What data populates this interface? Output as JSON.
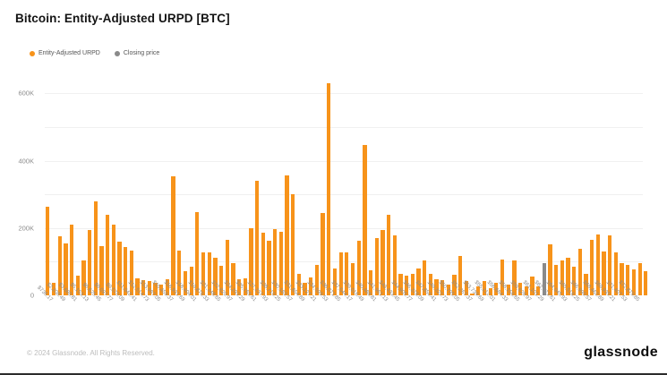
{
  "title": "Bitcoin: Entity-Adjusted URPD [BTC]",
  "legend": {
    "items": [
      {
        "label": "Entity-Adjusted URPD",
        "color": "#F7931A"
      },
      {
        "label": "Closing price",
        "color": "#8A8A8A"
      }
    ]
  },
  "footer": {
    "copyright": "© 2024 Glassnode. All Rights Reserved.",
    "brand": "glassnode"
  },
  "colors": {
    "bar_orange": "#F7931A",
    "bar_gray": "#8A8A8A",
    "gridline": "#f0f0f0",
    "axis_text": "#8c8c8c"
  },
  "chart_data": {
    "type": "bar",
    "title": "Bitcoin: Entity-Adjusted URPD [BTC]",
    "unit": "BTC",
    "grid": true,
    "legend_position": "top-left",
    "ylim": [
      0,
      650000
    ],
    "yticks": [
      {
        "label": "0",
        "v": 0
      },
      {
        "label": "200K",
        "v": 200000
      },
      {
        "label": "400K",
        "v": 400000
      },
      {
        "label": "600K",
        "v": 600000
      }
    ],
    "gridline_values": [
      100000,
      200000,
      300000,
      400000,
      500000,
      600000
    ],
    "series": [
      {
        "name": "Entity-Adjusted URPD",
        "color": "#F7931A"
      },
      {
        "name": "Closing price",
        "color": "#8A8A8A"
      }
    ],
    "closing_price_bar_index": 83,
    "x_tick_labels": [
      "$736.17",
      "$2,208.49",
      "$3,680.81",
      "$5,153.13",
      "$6,625.45",
      "$8,097.77",
      "$9,570.09",
      "$11,042.41",
      "$12,514.73",
      "$13,987.05",
      "$15,459.37",
      "$16,931.69",
      "$18,404.01",
      "$19,876.33",
      "$21,348.65",
      "$22,820.97",
      "$24,293.29",
      "$25,765.61",
      "$27,237.93",
      "$28,710.25",
      "$30,182.57",
      "$31,654.89",
      "$33,127.21",
      "$34,599.53",
      "$36,071.85",
      "$37,544.17",
      "$39,016.49",
      "$40,488.81",
      "$41,961.13",
      "$43,433.45",
      "$44,905.77",
      "$46,378.09",
      "$47,850.41",
      "$49,322.73",
      "$50,795.05",
      "$52,267.37",
      "$53,739.69",
      "$55,212.01",
      "$56,684.33",
      "$58,156.65",
      "$59,628.97",
      "$61,101.29",
      "$62,573.61",
      "$64,045.93",
      "$65,518.25",
      "$66,990.57",
      "$68,462.89",
      "$69,935.21",
      "$71,407.53",
      "$72,879.85"
    ],
    "values": [
      264000,
      36000,
      175000,
      153000,
      210000,
      58000,
      105000,
      193000,
      279000,
      146000,
      239000,
      210000,
      159000,
      144000,
      133000,
      50000,
      44000,
      42000,
      38000,
      31000,
      48000,
      354000,
      133000,
      73000,
      86000,
      248000,
      128000,
      127000,
      112000,
      88000,
      166000,
      95000,
      49000,
      50000,
      199000,
      340000,
      186000,
      162000,
      197000,
      190000,
      357000,
      301000,
      64000,
      38000,
      53000,
      91000,
      245000,
      630000,
      80000,
      127000,
      127000,
      95000,
      162000,
      448000,
      75000,
      171000,
      195000,
      240000,
      177000,
      64000,
      59000,
      64000,
      80000,
      104000,
      64000,
      49000,
      44000,
      33000,
      62000,
      118000,
      42000,
      6000,
      26000,
      42000,
      20000,
      38000,
      107000,
      31000,
      104000,
      38000,
      26000,
      56000,
      26000,
      95000,
      152000,
      91000,
      104000,
      112000,
      86000,
      139000,
      64000,
      166000,
      180000,
      130000,
      177000,
      127000,
      95000,
      91000,
      77000,
      95000,
      71000
    ]
  }
}
